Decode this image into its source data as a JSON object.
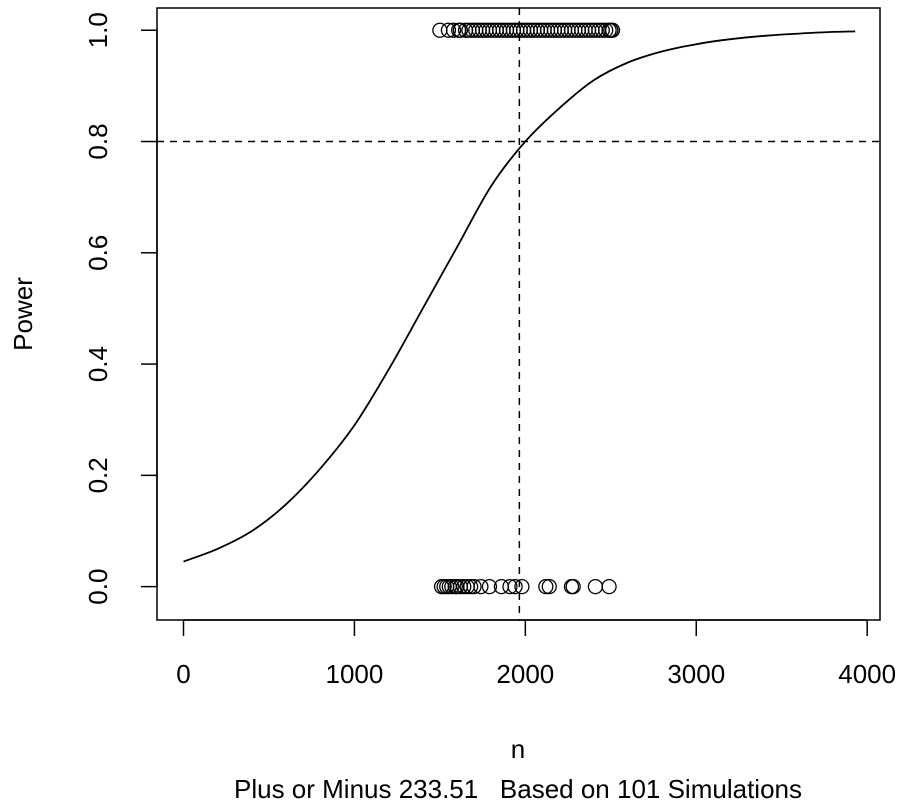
{
  "chart_data": {
    "type": "scatter",
    "xlabel": "n",
    "ylabel": "Power",
    "subtitle": "Plus or Minus 233.51   Based on 101 Simulations",
    "xlim": [
      -155,
      4075
    ],
    "ylim": [
      -0.06,
      1.04
    ],
    "x_ticks": [
      0,
      1000,
      2000,
      3000,
      4000
    ],
    "x_tick_labels": [
      "0",
      "1000",
      "2000",
      "3000",
      "4000"
    ],
    "y_ticks": [
      0.0,
      0.2,
      0.4,
      0.6,
      0.8,
      1.0
    ],
    "y_tick_labels": [
      "0.0",
      "0.2",
      "0.4",
      "0.6",
      "0.8",
      "1.0"
    ],
    "grid": false,
    "reference_lines": {
      "horizontal_power": 0.8,
      "vertical_n": 1965
    },
    "curve": {
      "description": "fitted power curve",
      "x": [
        0,
        200,
        400,
        600,
        800,
        1000,
        1200,
        1400,
        1600,
        1800,
        2000,
        2200,
        2400,
        2600,
        2800,
        3000,
        3200,
        3400,
        3600,
        3800,
        3930
      ],
      "y": [
        0.045,
        0.068,
        0.1,
        0.148,
        0.212,
        0.29,
        0.39,
        0.5,
        0.61,
        0.72,
        0.8,
        0.86,
        0.91,
        0.942,
        0.962,
        0.975,
        0.984,
        0.99,
        0.994,
        0.997,
        0.998
      ]
    },
    "series": [
      {
        "values_x": [
          1510,
          1525,
          1540,
          1555,
          1570,
          1590,
          1600,
          1620,
          1640,
          1660,
          1680,
          1700,
          1740,
          1790,
          1860,
          1910,
          1940,
          1980,
          2120,
          2140,
          2270,
          2280,
          2410,
          2490
        ],
        "values_y": [
          0,
          0,
          0,
          0,
          0,
          0,
          0,
          0,
          0,
          0,
          0,
          0,
          0,
          0,
          0,
          0,
          0,
          0,
          0,
          0,
          0,
          0,
          0,
          0
        ]
      },
      {
        "values_x": [
          1500,
          1550,
          1580,
          1610,
          1620,
          1650,
          1670,
          1690,
          1710,
          1730,
          1750,
          1770,
          1790,
          1810,
          1830,
          1850,
          1870,
          1890,
          1910,
          1930,
          1950,
          1970,
          1990,
          2010,
          2030,
          2050,
          2070,
          2090,
          2110,
          2130,
          2150,
          2170,
          2190,
          2210,
          2230,
          2250,
          2270,
          2290,
          2310,
          2330,
          2350,
          2370,
          2390,
          2410,
          2430,
          2450,
          2470,
          2490,
          2500,
          2510
        ],
        "values_y": [
          1,
          1,
          1,
          1,
          1,
          1,
          1,
          1,
          1,
          1,
          1,
          1,
          1,
          1,
          1,
          1,
          1,
          1,
          1,
          1,
          1,
          1,
          1,
          1,
          1,
          1,
          1,
          1,
          1,
          1,
          1,
          1,
          1,
          1,
          1,
          1,
          1,
          1,
          1,
          1,
          1,
          1,
          1,
          1,
          1,
          1,
          1,
          1,
          1,
          1
        ]
      }
    ]
  }
}
